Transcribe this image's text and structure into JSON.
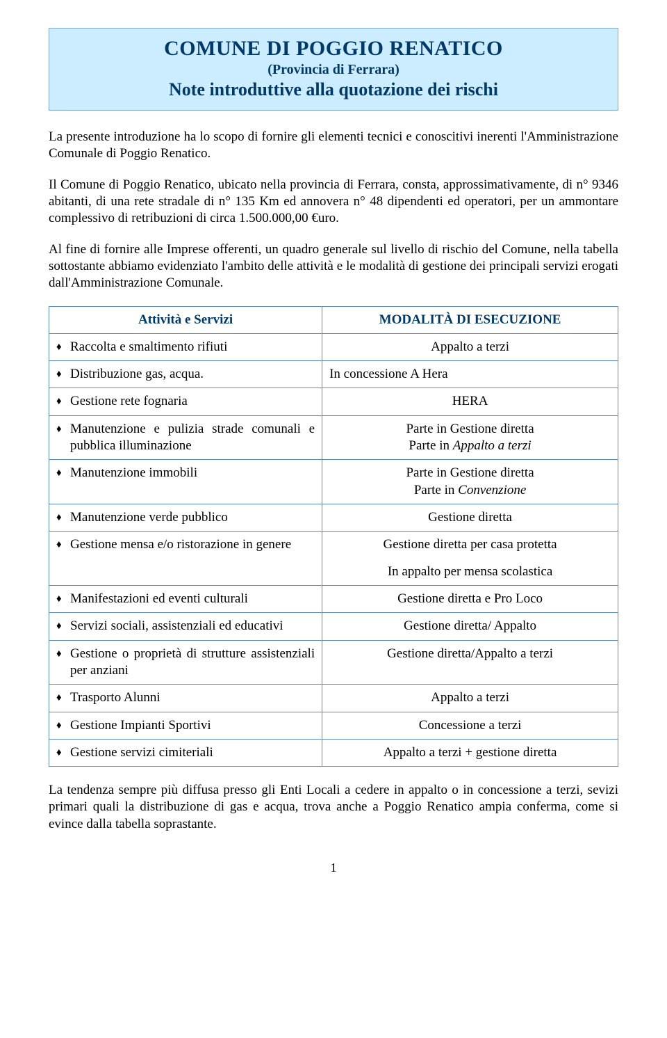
{
  "header": {
    "title": "COMUNE DI POGGIO RENATICO",
    "subtitle1": "(Provincia di Ferrara)",
    "subtitle2": "Note introduttive alla quotazione dei rischi"
  },
  "paragraphs": {
    "p1": "La presente introduzione ha lo scopo di fornire gli elementi tecnici e conoscitivi inerenti l'Amministrazione Comunale di Poggio Renatico.",
    "p2": "Il Comune di Poggio Renatico, ubicato nella provincia di Ferrara, consta, approssimativamente, di n° 9346 abitanti, di una rete stradale di n° 135 Km ed annovera n° 48 dipendenti ed operatori, per un ammontare complessivo di retribuzioni di circa 1.500.000,00 €uro.",
    "p3": "Al fine di fornire alle Imprese offerenti, un quadro generale sul livello di rischio del Comune, nella tabella sottostante abbiamo evidenziato l'ambito delle attività e le modalità di gestione dei principali servizi erogati dall'Amministrazione Comunale.",
    "p4": "La tendenza sempre più diffusa presso gli Enti Locali a cedere in appalto o in concessione a terzi, sevizi primari quali la distribuzione di gas e acqua, trova anche a Poggio Renatico ampia conferma, come si evince dalla tabella soprastante."
  },
  "table": {
    "header_left": "Attività e Servizi",
    "header_right": "MODALITÀ DI ESECUZIONE",
    "rows": [
      {
        "activity": "Raccolta e smaltimento rifiuti",
        "mode_plain": "Appalto a terzi",
        "align": "center"
      },
      {
        "activity": "Distribuzione gas, acqua.",
        "mode_plain": "In concessione A Hera",
        "align": "left"
      },
      {
        "activity": "Gestione rete fognaria",
        "mode_plain": "HERA",
        "align": "center"
      },
      {
        "activity": "Manutenzione e pulizia strade comunali e pubblica illuminazione",
        "mode_lines": [
          {
            "text": "Parte in Gestione diretta"
          },
          {
            "text_pre": "Parte in ",
            "text_it": "Appalto a terzi"
          }
        ],
        "align": "center"
      },
      {
        "activity": "Manutenzione immobili",
        "mode_lines": [
          {
            "text": "Parte in Gestione diretta"
          },
          {
            "text_pre": "Parte in ",
            "text_it": "Convenzione"
          }
        ],
        "align": "center"
      },
      {
        "activity": "Manutenzione verde pubblico",
        "mode_plain": "Gestione diretta",
        "align": "center"
      },
      {
        "activity": "Gestione mensa e/o ristorazione in genere",
        "mode_lines": [
          {
            "text": "Gestione diretta per casa protetta"
          },
          {
            "text": "In appalto per mensa scolastica"
          }
        ],
        "align": "center",
        "gap": true
      },
      {
        "activity": "Manifestazioni ed eventi culturali",
        "mode_plain": "Gestione diretta e Pro Loco",
        "align": "center"
      },
      {
        "activity": "Servizi sociali, assistenziali ed educativi",
        "mode_plain": "Gestione diretta/ Appalto",
        "align": "center"
      },
      {
        "activity": "Gestione o proprietà di strutture assistenziali per anziani",
        "mode_plain": "Gestione diretta/Appalto a terzi",
        "align": "center"
      },
      {
        "activity": "Trasporto Alunni",
        "mode_plain": "Appalto a terzi",
        "align": "center"
      },
      {
        "activity": "Gestione Impianti Sportivi",
        "mode_plain": "Concessione a terzi",
        "align": "center"
      },
      {
        "activity": "Gestione servizi cimiteriali",
        "mode_plain": "Appalto a terzi + gestione diretta",
        "align": "center"
      }
    ]
  },
  "page_number": "1",
  "colors": {
    "header_bg": "#ccecff",
    "header_text": "#003a6b",
    "table_border": "#5b8bb7",
    "body_text": "#000000",
    "page_bg": "#ffffff"
  }
}
